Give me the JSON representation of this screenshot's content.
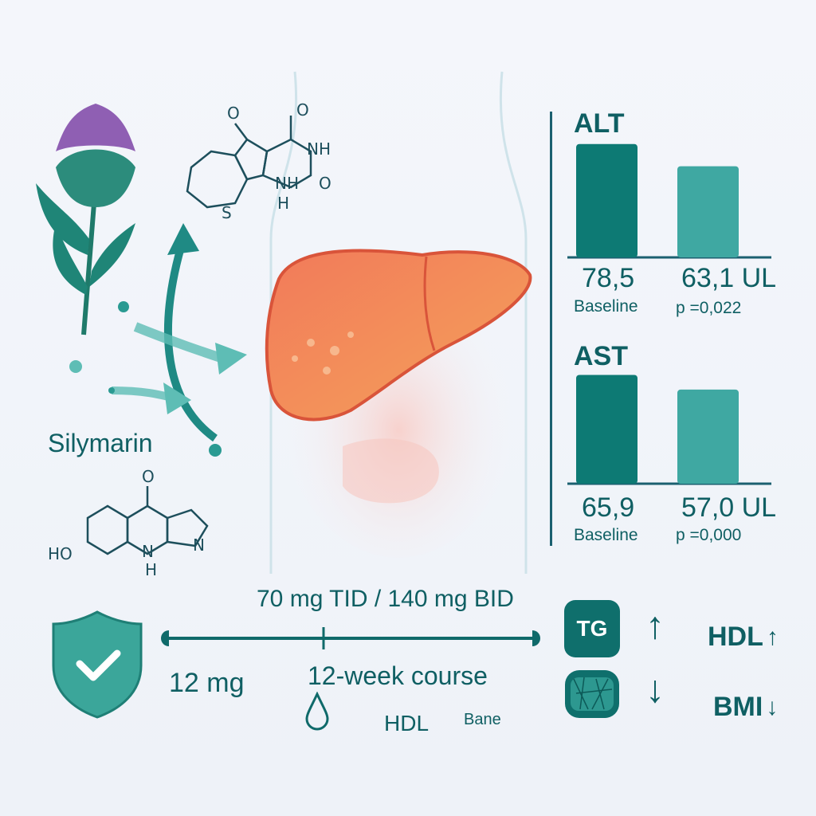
{
  "plant": {
    "label": "Silymarin"
  },
  "chemistry": {
    "top_structure": {
      "atoms": [
        "O",
        "O",
        "NH",
        "NH",
        "O",
        "H",
        "S"
      ]
    },
    "bottom_structure": {
      "atoms": [
        "O",
        "HO",
        "N",
        "H",
        "N"
      ]
    }
  },
  "colors": {
    "dark_teal": "#0d7a74",
    "light_teal": "#3fa8a2",
    "liver": "#ee6c4d",
    "text": "#0f5f63"
  },
  "chart_data": [
    {
      "type": "bar",
      "title": "ALT",
      "categories": [
        "Baseline",
        ""
      ],
      "values": [
        78.5,
        63.1
      ],
      "value_labels": [
        "78,5",
        "63,1 UL"
      ],
      "category_labels": [
        "Baseline",
        "p =0,022"
      ],
      "ylim": [
        0,
        80
      ],
      "grid": false
    },
    {
      "type": "bar",
      "title": "AST",
      "categories": [
        "Baseline",
        ""
      ],
      "values": [
        65.9,
        57.0
      ],
      "value_labels": [
        "65,9",
        "57,0 UL"
      ],
      "category_labels": [
        "Baseline",
        "p =0,000"
      ],
      "ylim": [
        0,
        70
      ],
      "grid": false
    }
  ],
  "dosing": {
    "regimen": "70 mg TID / 140 mg BID",
    "low_dose": "12 mg",
    "course": "12-week course",
    "hdl": "HDL",
    "bane": "Bane"
  },
  "lipids": {
    "tg_badge": "TG",
    "hdl": "HDL",
    "bmi": "BMI",
    "up_arrow": "↑",
    "down_arrow": "↓"
  }
}
